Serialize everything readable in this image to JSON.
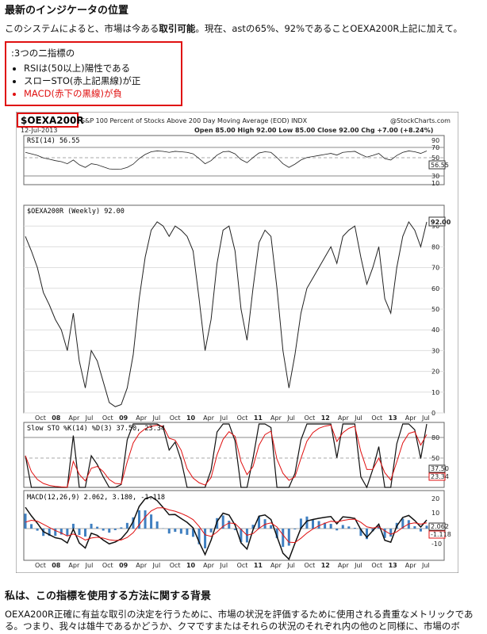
{
  "heading": "最新のインジケータの位置",
  "intro": {
    "pre": "このシステムによると、市場は今ある",
    "bold": "取引可能",
    "post": "。現在、astの65%、92%であることOEXA200R上記に加えて。"
  },
  "box": {
    "title": ":3つの二指標の",
    "items": [
      "RSIは(50以上)陽性である",
      "スローSTO(赤上記黒線)が正",
      "MACD(赤下の黒線)が負"
    ]
  },
  "chart_data": {
    "type": "line",
    "symbol": "$OEXA200R",
    "title": "S&P 100 Percent of Stocks Above 200 Day Moving Average (EOD) INDX",
    "source": "@StockCharts.com",
    "date": "12-Jul-2013",
    "quote": "Open 85.00  High 92.00  Low 85.00  Close 92.00  Chg +7.00 (+8.24%)",
    "x_ticks": [
      "Oct",
      "08",
      "Apr",
      "Jul",
      "Oct",
      "09",
      "Apr",
      "Jul",
      "Oct",
      "10",
      "Apr",
      "Jul",
      "Oct",
      "11",
      "Apr",
      "Jul",
      "Oct",
      "12",
      "Apr",
      "Jul",
      "Oct",
      "13",
      "Apr",
      "Jul"
    ],
    "rsi": {
      "label": "RSI(14) 56.55",
      "value": "56.55",
      "levels": [
        "90",
        "70",
        "50",
        "30",
        "10"
      ]
    },
    "main": {
      "label": "$OEXA200R (Weekly) 92.00",
      "value": "92.00",
      "ylim": [
        0,
        100
      ],
      "yticks": [
        "90",
        "80",
        "70",
        "60",
        "50",
        "40",
        "30",
        "20",
        "10",
        "0"
      ],
      "values": [
        85,
        78,
        70,
        58,
        52,
        45,
        40,
        30,
        48,
        25,
        12,
        30,
        25,
        15,
        5,
        3,
        4,
        12,
        28,
        55,
        75,
        88,
        92,
        90,
        85,
        90,
        88,
        85,
        78,
        55,
        30,
        45,
        72,
        88,
        90,
        78,
        50,
        35,
        60,
        82,
        88,
        85,
        60,
        30,
        12,
        28,
        48,
        60,
        65,
        70,
        75,
        80,
        72,
        85,
        88,
        90,
        75,
        62,
        70,
        80,
        55,
        48,
        70,
        85,
        92,
        88,
        80,
        92
      ]
    },
    "sto": {
      "label": "Slow STO %K(14) %D(3) 37.50, 23.34",
      "k": "37.50",
      "d": "23.34",
      "levels": [
        "80",
        "50",
        "20"
      ]
    },
    "macd": {
      "label": "MACD(12,26,9) 2.062, 3.180, -1.118",
      "v1": "2.062",
      "v2": "3.180",
      "v3": "-1.118",
      "yticks": [
        "20",
        "10",
        "0",
        "-10"
      ]
    }
  },
  "heading2": "私は、この指標を使用する方法に関する背景",
  "body": "OEXA200R正確に有益な取引の決定を行うために、市場の状況を評価するために使用される貴重なメトリックである。つまり、我々は雄牛であるかどうか、クマですまたはそれらの状況のそれぞれ内の他のと同様に、市場のボ"
}
